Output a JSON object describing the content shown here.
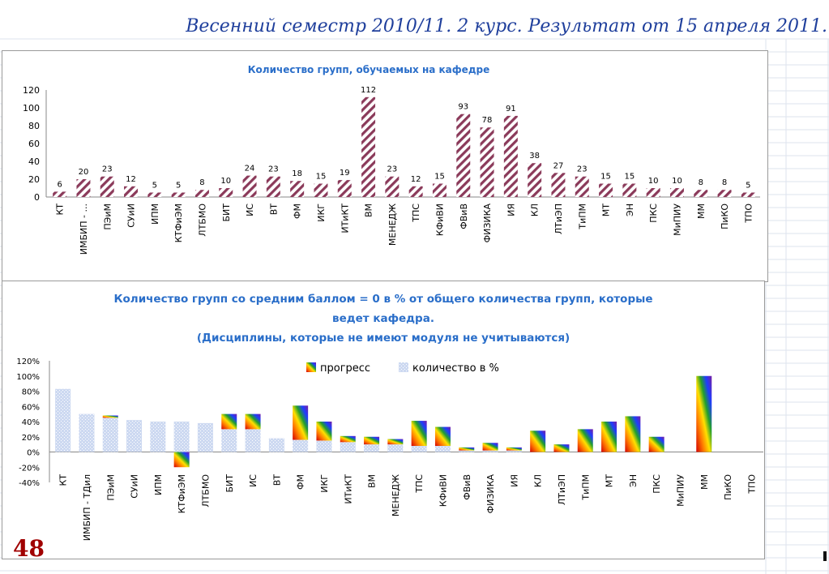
{
  "header": {
    "text": "Весенний семестр 2010/11.   2 курс.  Результат от 15 апреля 2011."
  },
  "slide_number": "48",
  "colors": {
    "bar_hatch": "#8b3a5a",
    "light_bar": "#cdd9f1",
    "title": "#2a6ec9"
  },
  "chart_data": [
    {
      "type": "bar",
      "title": "Количество групп, обучаемых на кафедре",
      "categories": [
        "КТ",
        "ИМБИП - ...",
        "ПЭиМ",
        "СУиИ",
        "ИПМ",
        "КТФиЭМ",
        "ЛТБМО",
        "БИТ",
        "ИС",
        "ВТ",
        "ФМ",
        "ИКГ",
        "ИТиКТ",
        "ВМ",
        "МЕНЕДЖ",
        "ТПС",
        "КФиВИ",
        "ФВиВ",
        "ФИЗИКА",
        "ИЯ",
        "КЛ",
        "ЛТиЭП",
        "ТиПМ",
        "МТ",
        "ЭН",
        "ПКС",
        "МиПИУ",
        "ММ",
        "ПиКО",
        "ТПО"
      ],
      "values": [
        6,
        20,
        23,
        12,
        5,
        5,
        8,
        10,
        24,
        23,
        18,
        15,
        19,
        112,
        23,
        12,
        15,
        93,
        78,
        91,
        38,
        27,
        23,
        15,
        15,
        10,
        10,
        8,
        8,
        5
      ],
      "data_labels": [
        "6",
        "20",
        "23",
        "12",
        "5",
        "5",
        "8",
        "10",
        "24",
        "23",
        "18",
        "15",
        "19",
        "112",
        "23",
        "12",
        "15",
        "93",
        "78",
        "91",
        "38",
        "27",
        "23",
        "15",
        "15",
        "10",
        "10",
        "8",
        "8",
        "5"
      ],
      "y_ticks": [
        "0",
        "20",
        "40",
        "60",
        "80",
        "100",
        "120"
      ],
      "ylim": [
        0,
        120
      ],
      "grid": false,
      "legend": false
    },
    {
      "type": "bar",
      "title_lines": [
        "Количество групп со средним баллом = 0 в % от общего количества групп, которые",
        "ведет кафедра.",
        "(Дисциплины, которые не имеют модуля не учитываются)"
      ],
      "categories": [
        "КТ",
        "ИМБИП - ТДил",
        "ПЭиМ",
        "СУиИ",
        "ИПМ",
        "КТФиЭМ",
        "ЛТБМО",
        "БИТ",
        "ИС",
        "ВТ",
        "ФМ",
        "ИКГ",
        "ИТиКТ",
        "ВМ",
        "МЕНЕДЖ",
        "ТПС",
        "КФиВИ",
        "ФВиВ",
        "ФИЗИКА",
        "ИЯ",
        "КЛ",
        "ЛТиЭП",
        "ТиПМ",
        "МТ",
        "ЭН",
        "ПКС",
        "МиПИУ",
        "ММ",
        "ПиКО",
        "ТПО"
      ],
      "series": [
        {
          "name": "прогресс",
          "values": [
            0,
            0,
            3,
            0,
            0,
            -20,
            0,
            20,
            20,
            0,
            45,
            25,
            8,
            10,
            7,
            33,
            25,
            4,
            10,
            4,
            28,
            10,
            30,
            40,
            47,
            20,
            0,
            100,
            0,
            0
          ]
        },
        {
          "name": "количество в %",
          "values": [
            83,
            50,
            45,
            42,
            40,
            40,
            38,
            30,
            30,
            18,
            16,
            15,
            13,
            10,
            10,
            8,
            8,
            2,
            2,
            2,
            0,
            0,
            0,
            0,
            0,
            0,
            0,
            0,
            0,
            0
          ]
        }
      ],
      "y_ticks": [
        "120%",
        "100%",
        "80%",
        "60%",
        "40%",
        "20%",
        "0%",
        "-20%",
        "-40%"
      ],
      "ylim": [
        -40,
        120
      ],
      "grid": false,
      "legend": "top-center"
    }
  ]
}
